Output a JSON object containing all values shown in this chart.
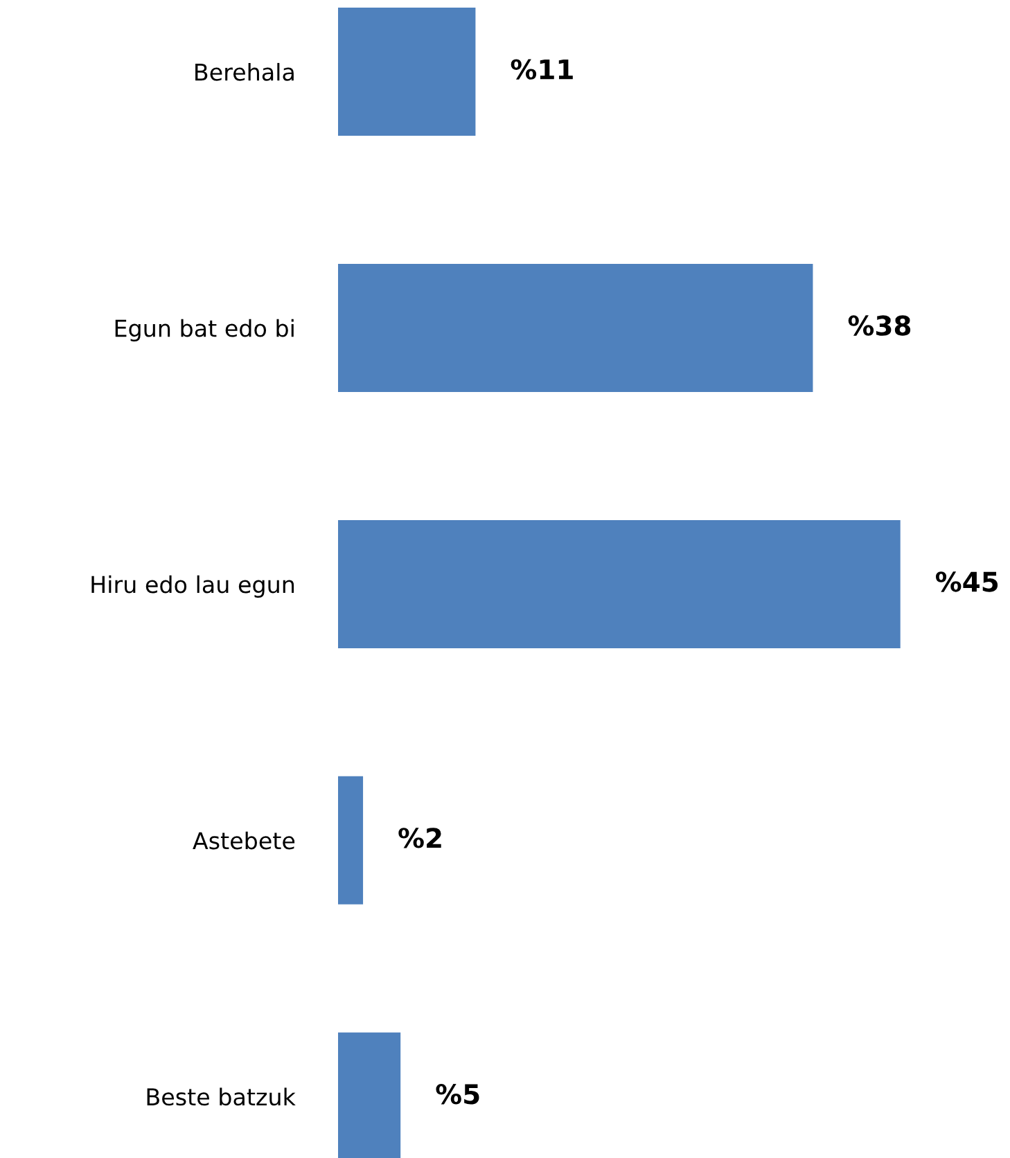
{
  "chart_data": {
    "type": "bar",
    "orientation": "horizontal",
    "categories": [
      "Berehala",
      "Egun bat edo bi",
      "Hiru edo lau egun",
      "Astebete",
      "Beste batzuk"
    ],
    "values": [
      11,
      38,
      45,
      2,
      5
    ],
    "value_labels": [
      "%11",
      "%38",
      "%45",
      "%2",
      "%5"
    ],
    "color": "#4f81bd",
    "grid": false,
    "legend": false
  }
}
